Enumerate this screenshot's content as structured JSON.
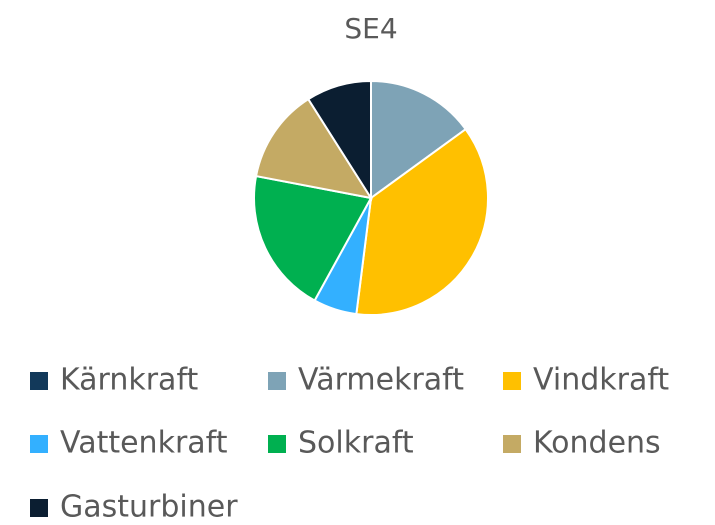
{
  "chart_data": {
    "type": "pie",
    "title": "SE4",
    "categories": [
      "Kärnkraft",
      "Värmekraft",
      "Vindkraft",
      "Vattenkraft",
      "Solkraft",
      "Kondens",
      "Gasturbiner"
    ],
    "values": [
      0,
      15,
      37,
      6,
      20,
      13,
      9
    ],
    "colors": [
      "#12395a",
      "#7ea3b6",
      "#ffc000",
      "#33b0ff",
      "#00b050",
      "#c4aa64",
      "#0b1e31"
    ],
    "legend": "bottom"
  }
}
